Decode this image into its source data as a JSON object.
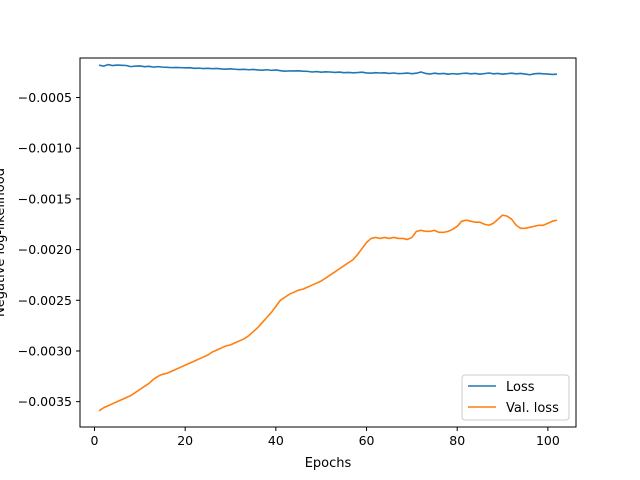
{
  "chart_data": {
    "type": "line",
    "title": "",
    "xlabel": "Epochs",
    "ylabel": "Negative log-likelihood",
    "xlim": [
      -3.2,
      106.2
    ],
    "ylim": [
      -0.00375,
      -0.00011
    ],
    "xticks": [
      0,
      20,
      40,
      60,
      80,
      100
    ],
    "xtick_labels": [
      "0",
      "20",
      "40",
      "60",
      "80",
      "100"
    ],
    "yticks": [
      -0.0035,
      -0.003,
      -0.0025,
      -0.002,
      -0.0015,
      -0.001,
      -0.0005
    ],
    "ytick_labels": [
      "−0.0035",
      "−0.0030",
      "−0.0025",
      "−0.0020",
      "−0.0015",
      "−0.0010",
      "−0.0005"
    ],
    "grid": false,
    "legend": {
      "location": "lower-right"
    },
    "series": [
      {
        "name": "Loss",
        "color": "#1f77b4",
        "points": [
          [
            1,
            -0.00018
          ],
          [
            2,
            -0.00019
          ],
          [
            3,
            -0.000175
          ],
          [
            4,
            -0.000185
          ],
          [
            5,
            -0.00018
          ],
          [
            6,
            -0.000182
          ],
          [
            7,
            -0.000184
          ],
          [
            8,
            -0.000195
          ],
          [
            9,
            -0.00019
          ],
          [
            10,
            -0.000188
          ],
          [
            11,
            -0.000196
          ],
          [
            12,
            -0.000192
          ],
          [
            13,
            -0.0002
          ],
          [
            14,
            -0.000195
          ],
          [
            15,
            -0.0002
          ],
          [
            16,
            -0.000202
          ],
          [
            17,
            -0.000205
          ],
          [
            18,
            -0.000203
          ],
          [
            19,
            -0.000205
          ],
          [
            20,
            -0.000207
          ],
          [
            21,
            -0.000206
          ],
          [
            22,
            -0.000212
          ],
          [
            23,
            -0.00021
          ],
          [
            24,
            -0.000214
          ],
          [
            25,
            -0.000212
          ],
          [
            26,
            -0.000215
          ],
          [
            27,
            -0.000213
          ],
          [
            28,
            -0.000218
          ],
          [
            29,
            -0.00022
          ],
          [
            30,
            -0.000217
          ],
          [
            31,
            -0.000221
          ],
          [
            32,
            -0.000224
          ],
          [
            33,
            -0.000222
          ],
          [
            34,
            -0.000226
          ],
          [
            35,
            -0.000223
          ],
          [
            36,
            -0.000228
          ],
          [
            37,
            -0.00023
          ],
          [
            38,
            -0.000226
          ],
          [
            39,
            -0.000232
          ],
          [
            40,
            -0.000228
          ],
          [
            41,
            -0.000235
          ],
          [
            42,
            -0.00024
          ],
          [
            43,
            -0.000237
          ],
          [
            44,
            -0.000238
          ],
          [
            45,
            -0.000236
          ],
          [
            46,
            -0.00024
          ],
          [
            47,
            -0.000242
          ],
          [
            48,
            -0.000248
          ],
          [
            49,
            -0.000244
          ],
          [
            50,
            -0.00025
          ],
          [
            51,
            -0.000246
          ],
          [
            52,
            -0.000248
          ],
          [
            53,
            -0.000252
          ],
          [
            54,
            -0.000249
          ],
          [
            55,
            -0.000255
          ],
          [
            56,
            -0.000252
          ],
          [
            57,
            -0.000256
          ],
          [
            58,
            -0.000254
          ],
          [
            59,
            -0.00025
          ],
          [
            60,
            -0.000257
          ],
          [
            61,
            -0.00026
          ],
          [
            62,
            -0.000255
          ],
          [
            63,
            -0.000258
          ],
          [
            64,
            -0.000256
          ],
          [
            65,
            -0.000262
          ],
          [
            66,
            -0.000258
          ],
          [
            67,
            -0.000264
          ],
          [
            68,
            -0.000262
          ],
          [
            69,
            -0.000259
          ],
          [
            70,
            -0.000265
          ],
          [
            71,
            -0.00026
          ],
          [
            72,
            -0.000248
          ],
          [
            73,
            -0.000262
          ],
          [
            74,
            -0.000268
          ],
          [
            75,
            -0.00026
          ],
          [
            76,
            -0.000266
          ],
          [
            77,
            -0.000262
          ],
          [
            78,
            -0.00027
          ],
          [
            79,
            -0.000264
          ],
          [
            80,
            -0.000268
          ],
          [
            81,
            -0.000263
          ],
          [
            82,
            -0.00026
          ],
          [
            83,
            -0.000266
          ],
          [
            84,
            -0.000262
          ],
          [
            85,
            -0.00027
          ],
          [
            86,
            -0.000264
          ],
          [
            87,
            -0.000258
          ],
          [
            88,
            -0.000266
          ],
          [
            89,
            -0.000262
          ],
          [
            90,
            -0.00027
          ],
          [
            91,
            -0.000265
          ],
          [
            92,
            -0.00026
          ],
          [
            93,
            -0.000266
          ],
          [
            94,
            -0.000262
          ],
          [
            95,
            -0.000268
          ],
          [
            96,
            -0.000275
          ],
          [
            97,
            -0.000266
          ],
          [
            98,
            -0.000262
          ],
          [
            99,
            -0.000266
          ],
          [
            100,
            -0.000268
          ],
          [
            101,
            -0.000272
          ],
          [
            102,
            -0.00027
          ]
        ]
      },
      {
        "name": "Val. loss",
        "color": "#ff7f0e",
        "points": [
          [
            1,
            -0.00359
          ],
          [
            2,
            -0.00356
          ],
          [
            3,
            -0.00354
          ],
          [
            4,
            -0.00352
          ],
          [
            5,
            -0.0035
          ],
          [
            6,
            -0.00348
          ],
          [
            7,
            -0.00346
          ],
          [
            8,
            -0.00344
          ],
          [
            9,
            -0.00341
          ],
          [
            10,
            -0.00338
          ],
          [
            11,
            -0.00335
          ],
          [
            12,
            -0.00332
          ],
          [
            13,
            -0.00328
          ],
          [
            14,
            -0.00325
          ],
          [
            15,
            -0.00323
          ],
          [
            16,
            -0.00322
          ],
          [
            17,
            -0.0032
          ],
          [
            18,
            -0.00318
          ],
          [
            19,
            -0.00316
          ],
          [
            20,
            -0.00314
          ],
          [
            21,
            -0.00312
          ],
          [
            22,
            -0.0031
          ],
          [
            23,
            -0.00308
          ],
          [
            24,
            -0.00306
          ],
          [
            25,
            -0.00304
          ],
          [
            26,
            -0.00301
          ],
          [
            27,
            -0.00299
          ],
          [
            28,
            -0.00297
          ],
          [
            29,
            -0.00295
          ],
          [
            30,
            -0.00294
          ],
          [
            31,
            -0.00292
          ],
          [
            32,
            -0.0029
          ],
          [
            33,
            -0.00288
          ],
          [
            34,
            -0.00285
          ],
          [
            35,
            -0.00281
          ],
          [
            36,
            -0.00277
          ],
          [
            37,
            -0.00272
          ],
          [
            38,
            -0.00267
          ],
          [
            39,
            -0.00262
          ],
          [
            40,
            -0.00256
          ],
          [
            41,
            -0.0025
          ],
          [
            42,
            -0.00247
          ],
          [
            43,
            -0.00244
          ],
          [
            44,
            -0.00242
          ],
          [
            45,
            -0.0024
          ],
          [
            46,
            -0.00239
          ],
          [
            47,
            -0.00237
          ],
          [
            48,
            -0.00235
          ],
          [
            49,
            -0.00233
          ],
          [
            50,
            -0.00231
          ],
          [
            51,
            -0.00228
          ],
          [
            52,
            -0.00225
          ],
          [
            53,
            -0.00222
          ],
          [
            54,
            -0.00219
          ],
          [
            55,
            -0.00216
          ],
          [
            56,
            -0.00213
          ],
          [
            57,
            -0.0021
          ],
          [
            58,
            -0.00205
          ],
          [
            59,
            -0.00199
          ],
          [
            60,
            -0.00193
          ],
          [
            61,
            -0.00189
          ],
          [
            62,
            -0.00188
          ],
          [
            63,
            -0.00189
          ],
          [
            64,
            -0.00188
          ],
          [
            65,
            -0.00189
          ],
          [
            66,
            -0.00188
          ],
          [
            67,
            -0.00189
          ],
          [
            68,
            -0.00189
          ],
          [
            69,
            -0.0019
          ],
          [
            70,
            -0.00188
          ],
          [
            71,
            -0.00182
          ],
          [
            72,
            -0.00181
          ],
          [
            73,
            -0.00182
          ],
          [
            74,
            -0.00182
          ],
          [
            75,
            -0.00181
          ],
          [
            76,
            -0.00183
          ],
          [
            77,
            -0.00183
          ],
          [
            78,
            -0.00182
          ],
          [
            79,
            -0.0018
          ],
          [
            80,
            -0.00177
          ],
          [
            81,
            -0.00172
          ],
          [
            82,
            -0.00171
          ],
          [
            83,
            -0.00172
          ],
          [
            84,
            -0.00173
          ],
          [
            85,
            -0.00173
          ],
          [
            86,
            -0.00175
          ],
          [
            87,
            -0.00176
          ],
          [
            88,
            -0.00174
          ],
          [
            89,
            -0.0017
          ],
          [
            90,
            -0.00166
          ],
          [
            91,
            -0.00167
          ],
          [
            92,
            -0.0017
          ],
          [
            93,
            -0.00176
          ],
          [
            94,
            -0.00179
          ],
          [
            95,
            -0.00179
          ],
          [
            96,
            -0.00178
          ],
          [
            97,
            -0.00177
          ],
          [
            98,
            -0.00176
          ],
          [
            99,
            -0.00176
          ],
          [
            100,
            -0.00174
          ],
          [
            101,
            -0.00172
          ],
          [
            102,
            -0.00171
          ]
        ]
      }
    ]
  }
}
